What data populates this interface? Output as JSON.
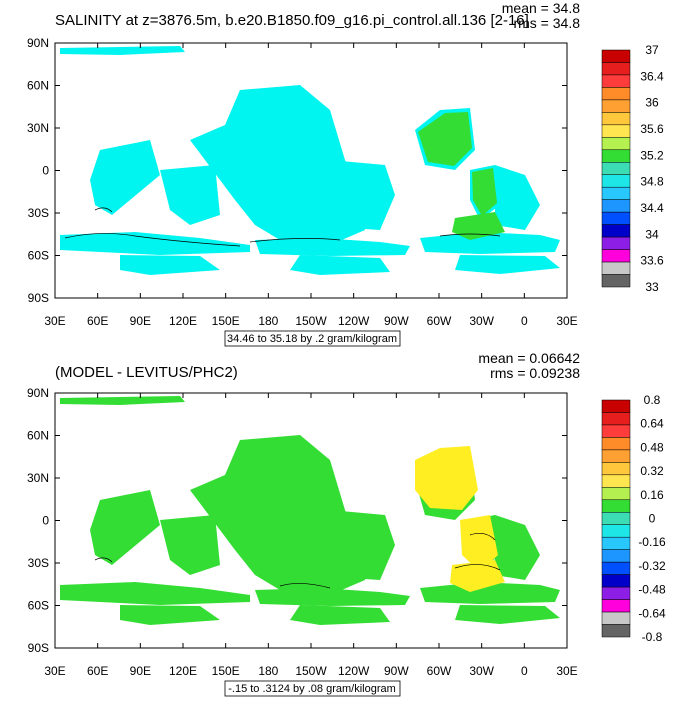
{
  "panels": [
    {
      "title": "SALINITY at z=3876.5m, b.e20.B1850.f09_g16.pi_control.all.136 [2-16]",
      "mean_text": "mean = 34.8",
      "rms_text": "rms = 34.8",
      "footer_text": "34.46 to 35.18 by .2 gram/kilogram",
      "fill_color": "#00f5f0",
      "accent_color": "#33dd33",
      "colorbar": {
        "colors": [
          "#c80000",
          "#e61e1e",
          "#ff3c3c",
          "#ff8c28",
          "#ffa032",
          "#ffc83c",
          "#ffe650",
          "#b4f050",
          "#33dd33",
          "#3cdcb4",
          "#1ee6e6",
          "#28c8ff",
          "#1e96ff",
          "#0050ff",
          "#0000c8",
          "#8c1ee6",
          "#ff00dc",
          "#c8c8c8",
          "#646464"
        ],
        "labels": [
          "37",
          "36.4",
          "36",
          "35.6",
          "35.2",
          "34.8",
          "34.4",
          "34",
          "33.6",
          "33"
        ]
      }
    },
    {
      "title": "(MODEL - LEVITUS/PHC2)",
      "mean_text": "mean = 0.06642",
      "rms_text": "rms = 0.09238",
      "footer_text": "-.15 to .3124 by .08 gram/kilogram",
      "fill_color": "#33dd33",
      "accent_color": "#ffee22",
      "colorbar": {
        "colors": [
          "#c80000",
          "#e61e1e",
          "#ff3c3c",
          "#ff8c28",
          "#ffa032",
          "#ffc83c",
          "#ffe650",
          "#b4f050",
          "#33dd33",
          "#3cdcb4",
          "#1ee6e6",
          "#28c8ff",
          "#1e96ff",
          "#0050ff",
          "#0000c8",
          "#8c1ee6",
          "#ff00dc",
          "#c8c8c8",
          "#646464"
        ],
        "labels": [
          "0.8",
          "0.64",
          "0.48",
          "0.32",
          "0.16",
          "0",
          "-0.16",
          "-0.32",
          "-0.48",
          "-0.64",
          "-0.8"
        ]
      }
    }
  ],
  "axes": {
    "lat_labels": [
      "90N",
      "60N",
      "30N",
      "0",
      "30S",
      "60S",
      "90S"
    ],
    "lon_labels": [
      "30E",
      "60E",
      "90E",
      "120E",
      "150E",
      "180",
      "150W",
      "120W",
      "90W",
      "60W",
      "30W",
      "0",
      "30E"
    ]
  }
}
